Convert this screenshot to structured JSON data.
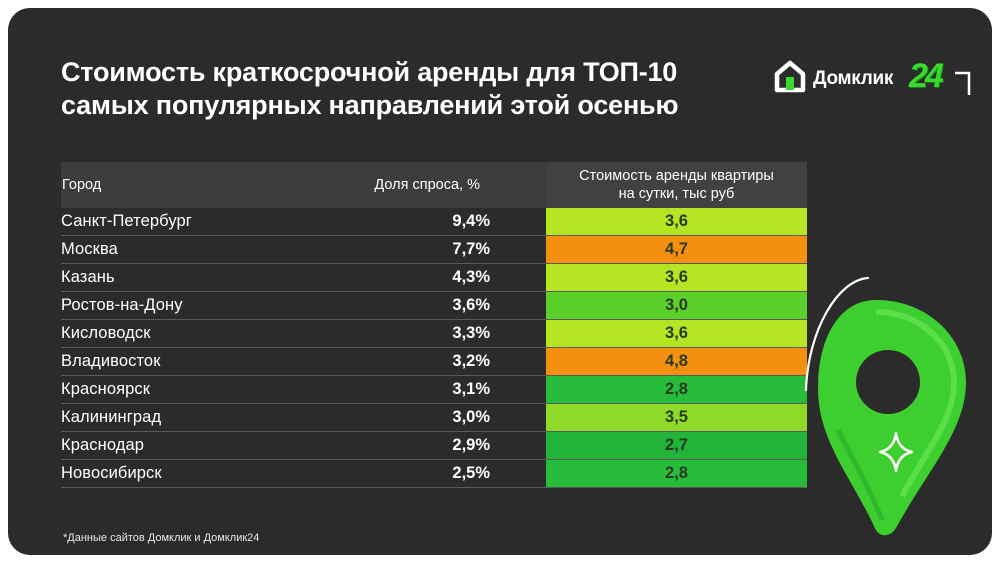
{
  "title": {
    "line1": "Стоимость краткосрочной аренды для ТОП-10",
    "line2": "самых популярных направлений этой осенью"
  },
  "logo": {
    "text": "Домклик",
    "number": "24"
  },
  "chart_data": {
    "type": "table",
    "columns": [
      "Город",
      "Доля спроса, %",
      "Стоимость аренды квартиры на сутки, тыс руб"
    ],
    "price_header_lines": [
      "Стоимость аренды квартиры",
      "на сутки, тыс руб"
    ],
    "rows": [
      {
        "city": "Санкт-Петербург",
        "share": "9,4%",
        "price": "3,6",
        "color": "#b6e623"
      },
      {
        "city": "Москва",
        "share": "7,7%",
        "price": "4,7",
        "color": "#f5900f"
      },
      {
        "city": "Казань",
        "share": "4,3%",
        "price": "3,6",
        "color": "#b6e623"
      },
      {
        "city": "Ростов-на-Дону",
        "share": "3,6%",
        "price": "3,0",
        "color": "#5dcf2c"
      },
      {
        "city": "Кисловодск",
        "share": "3,3%",
        "price": "3,6",
        "color": "#b6e623"
      },
      {
        "city": "Владивосток",
        "share": "3,2%",
        "price": "4,8",
        "color": "#f5900f"
      },
      {
        "city": "Красноярск",
        "share": "3,1%",
        "price": "2,8",
        "color": "#27bd3a"
      },
      {
        "city": "Калининград",
        "share": "3,0%",
        "price": "3,5",
        "color": "#8fd928"
      },
      {
        "city": "Краснодар",
        "share": "2,9%",
        "price": "2,7",
        "color": "#21b33a"
      },
      {
        "city": "Новосибирск",
        "share": "2,5%",
        "price": "2,8",
        "color": "#27bd3a"
      }
    ]
  },
  "footnote": "*Данные сайтов Домклик и Домклик24"
}
